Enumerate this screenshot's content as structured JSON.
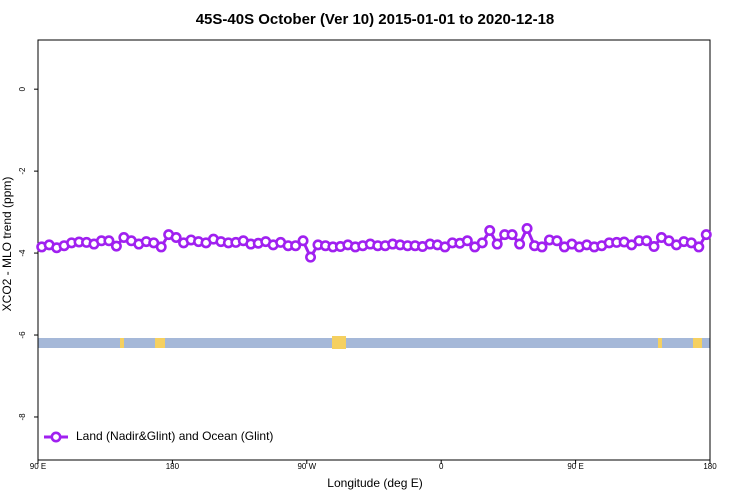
{
  "chart_data": {
    "type": "line",
    "title": "45S-40S October (Ver 10)   2015-01-01 to 2020-12-18",
    "xlabel": "Longitude (deg E)",
    "ylabel": "XCO2 - MLO trend (ppm)",
    "xlim": [
      90,
      540
    ],
    "xticks": [
      {
        "value": 90,
        "label": "90 E"
      },
      180,
      {
        "value": 270,
        "label": "90 W"
      },
      {
        "value": 360,
        "label": "0"
      },
      {
        "value": 450,
        "label": "90 E"
      },
      {
        "value": 540,
        "label": "180"
      }
    ],
    "ylim": [
      -9.05,
      1.2
    ],
    "yticks": [
      0,
      -2,
      -4,
      -6,
      -8
    ],
    "grid": false,
    "legend": "bottom-left",
    "x": [
      92.5,
      97.5,
      102.5,
      107.5,
      112.5,
      117.5,
      122.5,
      127.5,
      132.5,
      137.5,
      142.5,
      147.5,
      152.5,
      157.5,
      162.5,
      167.5,
      172.5,
      177.5,
      182.5,
      187.5,
      192.5,
      197.5,
      202.5,
      207.5,
      212.5,
      217.5,
      222.5,
      227.5,
      232.5,
      237.5,
      242.5,
      247.5,
      252.5,
      257.5,
      262.5,
      267.5,
      272.5,
      277.5,
      282.5,
      287.5,
      292.5,
      297.5,
      302.5,
      307.5,
      312.5,
      317.5,
      322.5,
      327.5,
      332.5,
      337.5,
      342.5,
      347.5,
      352.5,
      357.5,
      362.5,
      367.5,
      372.5,
      377.5,
      382.5,
      387.5,
      392.5,
      397.5,
      402.5,
      407.5,
      412.5,
      417.5,
      422.5,
      427.5,
      432.5,
      437.5,
      442.5,
      447.5,
      452.5,
      457.5,
      462.5,
      467.5,
      472.5,
      477.5,
      482.5,
      487.5,
      492.5,
      497.5,
      502.5,
      507.5,
      512.5,
      517.5,
      522.5,
      527.5,
      532.5,
      537.5
    ],
    "series": [
      {
        "name": "Land (Nadir&Glint) and Ocean (Glint)",
        "color": "#a020f0",
        "values": [
          -3.85,
          -3.8,
          -3.87,
          -3.82,
          -3.75,
          -3.73,
          -3.74,
          -3.78,
          -3.7,
          -3.7,
          -3.83,
          -3.62,
          -3.7,
          -3.78,
          -3.72,
          -3.75,
          -3.85,
          -3.55,
          -3.62,
          -3.75,
          -3.68,
          -3.72,
          -3.75,
          -3.66,
          -3.72,
          -3.75,
          -3.74,
          -3.7,
          -3.78,
          -3.76,
          -3.72,
          -3.8,
          -3.74,
          -3.82,
          -3.82,
          -3.7,
          -4.1,
          -3.8,
          -3.82,
          -3.85,
          -3.84,
          -3.8,
          -3.85,
          -3.82,
          -3.78,
          -3.82,
          -3.82,
          -3.78,
          -3.8,
          -3.82,
          -3.82,
          -3.84,
          -3.78,
          -3.8,
          -3.85,
          -3.75,
          -3.76,
          -3.7,
          -3.85,
          -3.75,
          -3.45,
          -3.78,
          -3.55,
          -3.55,
          -3.78,
          -3.4,
          -3.82,
          -3.85,
          -3.68,
          -3.7,
          -3.85,
          -3.78,
          -3.85,
          -3.8,
          -3.85,
          -3.82,
          -3.75,
          -3.74,
          -3.73,
          -3.8,
          -3.7,
          -3.7,
          -3.84,
          -3.62,
          -3.7,
          -3.8,
          -3.72,
          -3.75,
          -3.85,
          -3.55
        ]
      }
    ]
  }
}
